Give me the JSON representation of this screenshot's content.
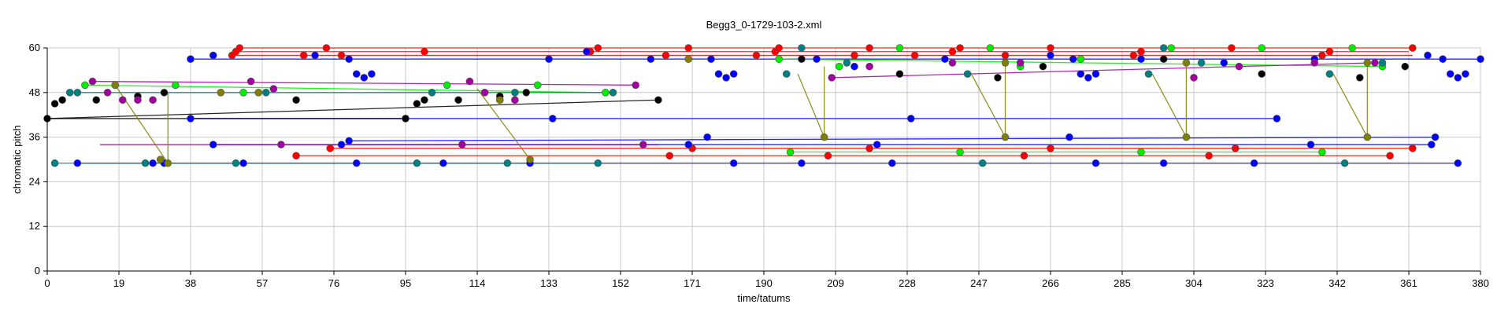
{
  "chart_data": {
    "type": "scatter",
    "title": "Begg3_0-1729-103-2.xml",
    "xlabel": "time/tatums",
    "ylabel": "chromatic pitch",
    "xlim": [
      0,
      380
    ],
    "ylim": [
      0,
      60
    ],
    "x_ticks": [
      "0",
      "19",
      "38",
      "57",
      "76",
      "95",
      "114",
      "133",
      "152",
      "171",
      "190",
      "209",
      "228",
      "247",
      "266",
      "285",
      "304",
      "323",
      "342",
      "361",
      "380"
    ],
    "y_ticks": [
      "0",
      "12",
      "24",
      "36",
      "48",
      "60"
    ],
    "grid": true,
    "colors": {
      "red": "#ff0000",
      "blue": "#0000ff",
      "green": "#00ee00",
      "teal": "#008080",
      "black": "#000000",
      "purple": "#a000a0",
      "olive": "#808000",
      "grid": "#c8c8c8"
    },
    "series": [
      {
        "color_key": "red",
        "points": [
          [
            49,
            58
          ],
          [
            50,
            59
          ],
          [
            51,
            60
          ],
          [
            68,
            58
          ],
          [
            74,
            60
          ],
          [
            78,
            58
          ],
          [
            100,
            59
          ],
          [
            144,
            59
          ],
          [
            146,
            60
          ],
          [
            164,
            58
          ],
          [
            170,
            60
          ],
          [
            188,
            58
          ],
          [
            193,
            59
          ],
          [
            194,
            60
          ],
          [
            214,
            58
          ],
          [
            218,
            60
          ],
          [
            230,
            58
          ],
          [
            240,
            59
          ],
          [
            242,
            60
          ],
          [
            254,
            58
          ],
          [
            266,
            60
          ],
          [
            288,
            58
          ],
          [
            290,
            59
          ],
          [
            314,
            60
          ],
          [
            338,
            58
          ],
          [
            340,
            59
          ],
          [
            362,
            60
          ],
          [
            66,
            31
          ],
          [
            75,
            33
          ],
          [
            165,
            31
          ],
          [
            171,
            33
          ],
          [
            207,
            31
          ],
          [
            218,
            33
          ],
          [
            259,
            31
          ],
          [
            266,
            33
          ],
          [
            308,
            31
          ],
          [
            315,
            33
          ],
          [
            356,
            31
          ],
          [
            362,
            33
          ]
        ],
        "lines": [
          [
            [
              51,
              60
            ],
            [
              362,
              60
            ]
          ],
          [
            [
              49,
              58
            ],
            [
              362,
              58
            ]
          ],
          [
            [
              50,
              59
            ],
            [
              361,
              59
            ]
          ],
          [
            [
              66,
              31
            ],
            [
              356,
              31
            ]
          ],
          [
            [
              75,
              33
            ],
            [
              362,
              33
            ]
          ]
        ]
      },
      {
        "color_key": "blue",
        "points": [
          [
            38,
            57
          ],
          [
            44,
            58
          ],
          [
            71,
            58
          ],
          [
            80,
            57
          ],
          [
            82,
            53
          ],
          [
            84,
            52
          ],
          [
            86,
            53
          ],
          [
            133,
            57
          ],
          [
            143,
            59
          ],
          [
            160,
            57
          ],
          [
            176,
            57
          ],
          [
            178,
            53
          ],
          [
            180,
            52
          ],
          [
            182,
            53
          ],
          [
            204,
            57
          ],
          [
            214,
            55
          ],
          [
            238,
            57
          ],
          [
            266,
            58
          ],
          [
            272,
            57
          ],
          [
            274,
            53
          ],
          [
            276,
            52
          ],
          [
            278,
            53
          ],
          [
            290,
            57
          ],
          [
            312,
            56
          ],
          [
            336,
            57
          ],
          [
            366,
            58
          ],
          [
            370,
            57
          ],
          [
            372,
            53
          ],
          [
            374,
            52
          ],
          [
            376,
            53
          ],
          [
            380,
            57
          ],
          [
            38,
            41
          ],
          [
            95,
            41
          ],
          [
            134,
            41
          ],
          [
            229,
            41
          ],
          [
            326,
            41
          ],
          [
            44,
            34
          ],
          [
            78,
            34
          ],
          [
            170,
            34
          ],
          [
            220,
            34
          ],
          [
            335,
            34
          ],
          [
            367,
            34
          ],
          [
            80,
            35
          ],
          [
            175,
            36
          ],
          [
            271,
            36
          ],
          [
            368,
            36
          ],
          [
            8,
            29
          ],
          [
            28,
            29
          ],
          [
            31,
            29
          ],
          [
            52,
            29
          ],
          [
            82,
            29
          ],
          [
            105,
            29
          ],
          [
            128,
            29
          ],
          [
            182,
            29
          ],
          [
            200,
            29
          ],
          [
            224,
            29
          ],
          [
            278,
            29
          ],
          [
            296,
            29
          ],
          [
            320,
            29
          ],
          [
            374,
            29
          ]
        ],
        "lines": [
          [
            [
              38,
              57
            ],
            [
              380,
              57
            ]
          ],
          [
            [
              38,
              41
            ],
            [
              326,
              41
            ]
          ],
          [
            [
              44,
              34
            ],
            [
              367,
              34
            ]
          ],
          [
            [
              80,
              35
            ],
            [
              368,
              36
            ]
          ],
          [
            [
              8,
              29
            ],
            [
              374,
              29
            ]
          ]
        ]
      },
      {
        "color_key": "green",
        "points": [
          [
            10,
            50
          ],
          [
            18,
            50
          ],
          [
            34,
            50
          ],
          [
            52,
            48
          ],
          [
            106,
            50
          ],
          [
            130,
            50
          ],
          [
            148,
            48
          ],
          [
            194,
            57
          ],
          [
            210,
            55
          ],
          [
            226,
            60
          ],
          [
            250,
            60
          ],
          [
            258,
            55
          ],
          [
            274,
            57
          ],
          [
            298,
            60
          ],
          [
            322,
            60
          ],
          [
            346,
            60
          ],
          [
            354,
            55
          ],
          [
            197,
            32
          ],
          [
            242,
            32
          ],
          [
            290,
            32
          ],
          [
            338,
            32
          ]
        ],
        "lines": [
          [
            [
              10,
              50
            ],
            [
              148,
              48
            ]
          ],
          [
            [
              194,
              57
            ],
            [
              354,
              55
            ]
          ],
          [
            [
              197,
              32
            ],
            [
              338,
              32
            ]
          ]
        ]
      },
      {
        "color_key": "teal",
        "points": [
          [
            2,
            29
          ],
          [
            26,
            29
          ],
          [
            50,
            29
          ],
          [
            98,
            29
          ],
          [
            122,
            29
          ],
          [
            146,
            29
          ],
          [
            6,
            48
          ],
          [
            8,
            48
          ],
          [
            58,
            48
          ],
          [
            102,
            48
          ],
          [
            124,
            48
          ],
          [
            150,
            48
          ],
          [
            196,
            53
          ],
          [
            212,
            56
          ],
          [
            244,
            53
          ],
          [
            258,
            56
          ],
          [
            292,
            53
          ],
          [
            306,
            56
          ],
          [
            340,
            53
          ],
          [
            354,
            56
          ],
          [
            200,
            60
          ],
          [
            296,
            60
          ],
          [
            248,
            29
          ],
          [
            344,
            29
          ]
        ],
        "lines": [
          [
            [
              2,
              29
            ],
            [
              146,
              29
            ]
          ],
          [
            [
              6,
              48
            ],
            [
              150,
              48
            ]
          ]
        ]
      },
      {
        "color_key": "black",
        "points": [
          [
            0,
            41
          ],
          [
            2,
            45
          ],
          [
            4,
            46
          ],
          [
            13,
            46
          ],
          [
            24,
            47
          ],
          [
            31,
            48
          ],
          [
            66,
            46
          ],
          [
            95,
            41
          ],
          [
            98,
            45
          ],
          [
            100,
            46
          ],
          [
            109,
            46
          ],
          [
            120,
            47
          ],
          [
            127,
            48
          ],
          [
            162,
            46
          ],
          [
            200,
            57
          ],
          [
            226,
            53
          ],
          [
            252,
            52
          ],
          [
            264,
            55
          ],
          [
            296,
            57
          ],
          [
            322,
            53
          ],
          [
            348,
            52
          ],
          [
            360,
            55
          ]
        ],
        "lines": [
          [
            [
              0,
              41
            ],
            [
              95,
              41
            ]
          ],
          [
            [
              0,
              41
            ],
            [
              162,
              46
            ]
          ]
        ]
      },
      {
        "color_key": "purple",
        "points": [
          [
            12,
            51
          ],
          [
            16,
            48
          ],
          [
            20,
            46
          ],
          [
            24,
            46
          ],
          [
            28,
            46
          ],
          [
            54,
            51
          ],
          [
            60,
            49
          ],
          [
            62,
            34
          ],
          [
            112,
            51
          ],
          [
            116,
            48
          ],
          [
            120,
            46
          ],
          [
            124,
            46
          ],
          [
            156,
            50
          ],
          [
            158,
            34
          ],
          [
            110,
            34
          ],
          [
            208,
            52
          ],
          [
            218,
            55
          ],
          [
            240,
            56
          ],
          [
            258,
            56
          ],
          [
            304,
            52
          ],
          [
            316,
            55
          ],
          [
            336,
            56
          ],
          [
            352,
            56
          ]
        ],
        "lines": [
          [
            [
              14,
              34
            ],
            [
              162,
              34
            ]
          ],
          [
            [
              12,
              51
            ],
            [
              156,
              50
            ]
          ],
          [
            [
              208,
              52
            ],
            [
              352,
              56
            ]
          ]
        ]
      },
      {
        "color_key": "olive",
        "points": [
          [
            18,
            50
          ],
          [
            30,
            30
          ],
          [
            32,
            29
          ],
          [
            46,
            48
          ],
          [
            56,
            48
          ],
          [
            120,
            46
          ],
          [
            128,
            30
          ],
          [
            170,
            57
          ],
          [
            206,
            36
          ],
          [
            254,
            56
          ],
          [
            254,
            36
          ],
          [
            302,
            56
          ],
          [
            302,
            36
          ],
          [
            350,
            56
          ],
          [
            350,
            36
          ]
        ],
        "lines": [
          [
            [
              18,
              50
            ],
            [
              32,
              29
            ]
          ],
          [
            [
              32,
              48
            ],
            [
              32,
              29
            ]
          ],
          [
            [
              114,
              49
            ],
            [
              128,
              30
            ]
          ],
          [
            [
              199,
              53
            ],
            [
              206,
              36
            ]
          ],
          [
            [
              206,
              36
            ],
            [
              206,
              55
            ]
          ],
          [
            [
              245,
              53
            ],
            [
              254,
              36
            ]
          ],
          [
            [
              254,
              36
            ],
            [
              254,
              55
            ]
          ],
          [
            [
              293,
              53
            ],
            [
              302,
              36
            ]
          ],
          [
            [
              302,
              36
            ],
            [
              302,
              55
            ]
          ],
          [
            [
              341,
              53
            ],
            [
              350,
              36
            ]
          ],
          [
            [
              350,
              36
            ],
            [
              350,
              55
            ]
          ]
        ]
      }
    ]
  }
}
